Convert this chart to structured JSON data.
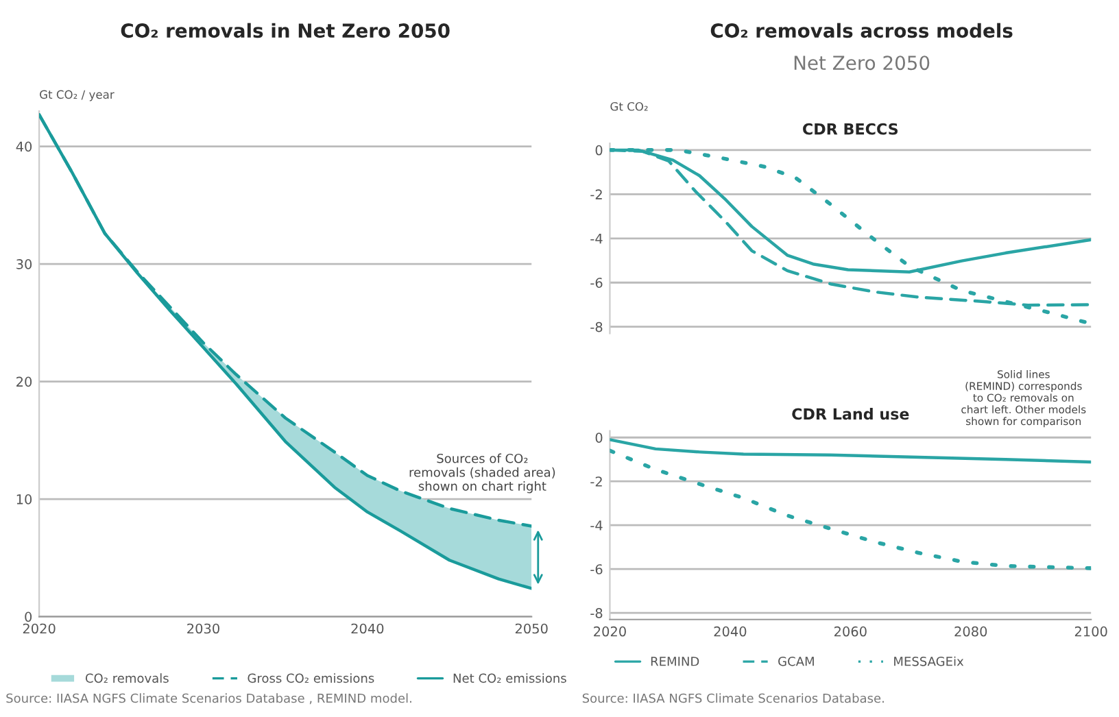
{
  "chart_data": [
    {
      "type": "line",
      "title": "CO₂ removals in Net Zero 2050",
      "ylabel": "Gt CO₂ / year",
      "series": [
        {
          "name": "CO₂ removals",
          "type": "area",
          "color": "#a6dada"
        },
        {
          "name": "Gross CO₂ emissions",
          "type": "line",
          "line_style": "dashed",
          "color": "#1a9b9b",
          "x": [
            2020,
            2022,
            2024,
            2026,
            2028,
            2030,
            2032,
            2035,
            2038,
            2040,
            2042,
            2045,
            2048,
            2050
          ],
          "values": [
            42.7,
            37.8,
            32.6,
            29.3,
            26.3,
            23.3,
            20.6,
            16.9,
            14,
            12,
            10.7,
            9.2,
            8.2,
            7.7
          ],
          "lower": [
            42.7,
            37.8,
            32.6,
            29.2,
            26,
            22.9,
            19.8,
            14.9,
            11,
            8.9,
            7.3,
            4.8,
            3.2,
            2.4
          ],
          "upper": [
            42.7,
            37.8,
            32.6,
            29.3,
            26.3,
            23.3,
            20.6,
            16.9,
            14,
            12,
            10.7,
            9.2,
            8.2,
            7.7
          ]
        },
        {
          "name": "Net CO₂ emissions",
          "type": "line",
          "line_style": "solid",
          "color": "#1a9b9b",
          "x": [
            2020,
            2022,
            2024,
            2026,
            2028,
            2030,
            2032,
            2035,
            2038,
            2040,
            2042,
            2045,
            2048,
            2050
          ],
          "values": [
            42.7,
            37.8,
            32.6,
            29.2,
            26,
            22.9,
            19.8,
            14.9,
            11,
            8.9,
            7.3,
            4.8,
            3.2,
            2.4
          ]
        }
      ],
      "xlim": [
        2020,
        2050
      ],
      "xticks": [
        2020,
        2030,
        2040,
        2050
      ],
      "ylim": [
        0,
        43
      ],
      "yticks": [
        0,
        10,
        20,
        30,
        40
      ],
      "grid": "y",
      "legend": "bottom",
      "annotations": [
        "Sources of CO₂\nremovals (shaded area)\nshown on chart right",
        "Source: IIASA NGFS Climate Scenarios Database , REMIND model."
      ]
    },
    {
      "type": "line",
      "title": "CO₂ removals across models",
      "subtitle": "Net Zero 2050",
      "ylabel": "Gt CO₂",
      "series": [
        {
          "name": "REMIND",
          "line_style": "solid",
          "color": "#2aa5a5",
          "x": [
            2020,
            2024.7,
            2030.5,
            2034.9,
            2039.3,
            2043.6,
            2049.5,
            2053.8,
            2059.6,
            2069.8,
            2078.5,
            2085.8,
            2100
          ],
          "values": [
            0,
            0,
            -0.46,
            -1.16,
            -2.26,
            -3.46,
            -4.76,
            -5.16,
            -5.42,
            -5.52,
            -5.02,
            -4.66,
            -4.06
          ]
        },
        {
          "name": "GCAM",
          "line_style": "dashed",
          "color": "#2aa5a5",
          "x": [
            2020,
            2025.5,
            2029.8,
            2034.2,
            2039.3,
            2043.6,
            2049.5,
            2056.7,
            2064,
            2071.3,
            2082.2,
            2089.5,
            2100
          ],
          "values": [
            0,
            -0.06,
            -0.5,
            -1.86,
            -3.26,
            -4.56,
            -5.46,
            -6.06,
            -6.42,
            -6.66,
            -6.86,
            -7.02,
            -7
          ]
        },
        {
          "name": "MESSAGEix",
          "line_style": "dotted",
          "color": "#2aa5a5",
          "x": [
            2020,
            2031.3,
            2038.5,
            2045.8,
            2050.9,
            2056.7,
            2064,
            2069.8,
            2078.5,
            2085.8,
            2093.1,
            2100
          ],
          "values": [
            0,
            0,
            -0.36,
            -0.76,
            -1.26,
            -2.46,
            -4.06,
            -5.26,
            -6.36,
            -6.86,
            -7.36,
            -7.86
          ]
        }
      ],
      "xlim": [
        2020,
        2100
      ],
      "xticks": [
        2020,
        2040,
        2060,
        2080,
        2100
      ],
      "ylim": [
        -8.3,
        0.3
      ],
      "yticks": [
        -8,
        -6,
        -4,
        -2,
        0
      ],
      "grid": "y",
      "tick_labels": "y",
      "legend": "bottom",
      "annotations": [
        "CDR BECCS"
      ]
    },
    {
      "type": "line",
      "title": "CDR Land use",
      "series": [
        {
          "line_style": "solid",
          "color": "#2aa5a5",
          "x": [
            2020,
            2027.6,
            2034.9,
            2042.2,
            2056.7,
            2071.3,
            2085.8,
            2100
          ],
          "values": [
            -0.1,
            -0.52,
            -0.66,
            -0.76,
            -0.8,
            -0.9,
            -1.0,
            -1.12
          ]
        },
        {
          "line_style": "dotted",
          "color": "#2aa5a5",
          "x": [
            2020,
            2027.6,
            2034.9,
            2042.2,
            2049.5,
            2056.7,
            2064,
            2071.3,
            2078.5,
            2085.8,
            2100
          ],
          "values": [
            -0.6,
            -1.46,
            -2.12,
            -2.76,
            -3.56,
            -4.16,
            -4.76,
            -5.26,
            -5.66,
            -5.86,
            -5.96
          ]
        }
      ],
      "xlim": [
        2020,
        2100
      ],
      "xticks": [
        2020,
        2040,
        2060,
        2080,
        2100
      ],
      "ylim": [
        -8.3,
        0.3
      ],
      "yticks": [
        -8,
        -6,
        -4,
        -2,
        0
      ],
      "grid": "y",
      "annotations": [
        "Solid lines\n(REMIND) corresponds\nto CO₂ removals on\nchart left. Other models\nshown for comparison",
        "Source: IIASA NGFS Climate Scenarios Database."
      ]
    }
  ]
}
